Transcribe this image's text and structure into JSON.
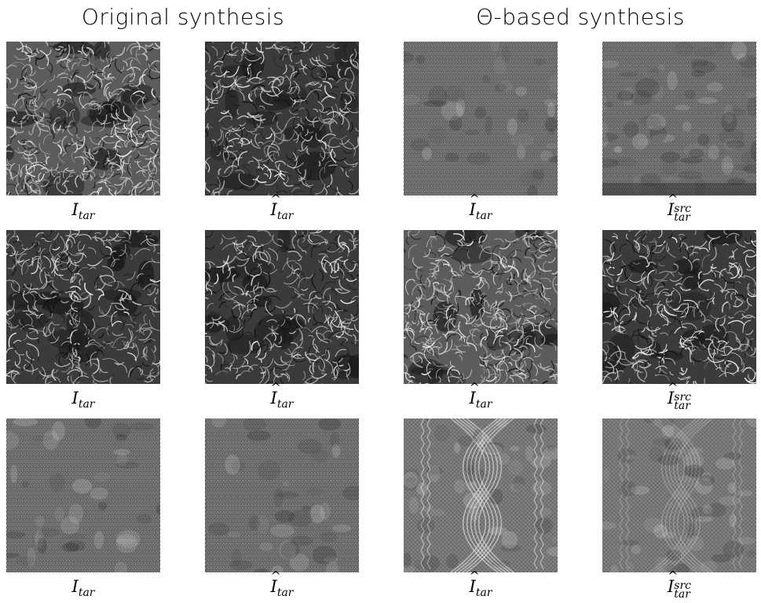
{
  "headings": {
    "left": "Original synthesis",
    "right": "Θ-based synthesis"
  },
  "captions": {
    "col1": {
      "base": "I",
      "hat": "",
      "sub": "tar",
      "sup": ""
    },
    "col2": {
      "base": "I",
      "hat": "^",
      "sub": "tar",
      "sup": ""
    },
    "col3": {
      "base": "I",
      "hat": "^",
      "sub": "tar",
      "sup": ""
    },
    "col4": {
      "base": "I",
      "hat": "^",
      "sub": "tar",
      "sup": "src"
    }
  },
  "texture_styles": {
    "fluffy_light": "fluffy-fibers-icon",
    "fluffy_dark": "fluffy-fibers-icon",
    "knit_fine": "knit-stitch-icon",
    "knit_noisy": "knit-stitch-icon",
    "cable_knit": "cable-knit-icon",
    "cable_blurred": "cable-knit-icon"
  },
  "colors": {
    "texture_base": "#6a6a6a",
    "fiber_light": "#e8e8e8",
    "fiber_dark": "#1a1a1a"
  }
}
